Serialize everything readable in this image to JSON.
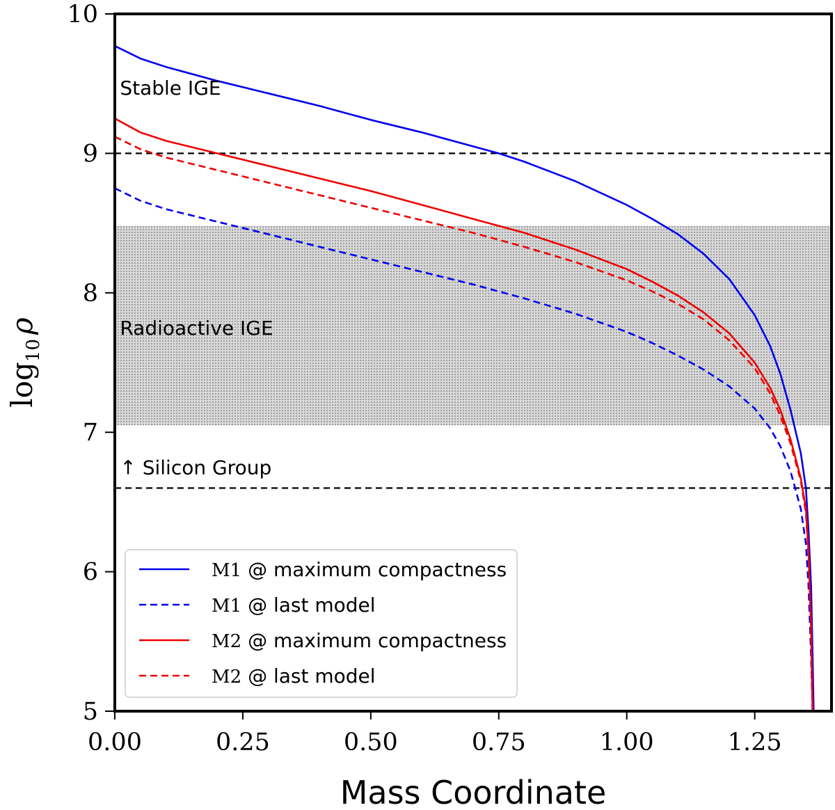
{
  "chart_data": {
    "type": "line",
    "title": "",
    "xlabel": "Mass Coordinate",
    "ylabel": "log10 ρ",
    "ylabel_parts": {
      "base": "log",
      "sub": "10",
      "symbol": "ρ"
    },
    "xlim": [
      0.0,
      1.4
    ],
    "ylim": [
      5,
      10
    ],
    "xticks": [
      0.0,
      0.25,
      0.5,
      0.75,
      1.0,
      1.25
    ],
    "xtick_labels": [
      "0.00",
      "0.25",
      "0.50",
      "0.75",
      "1.00",
      "1.25"
    ],
    "yticks": [
      5,
      6,
      7,
      8,
      9,
      10
    ],
    "ytick_labels": [
      "5",
      "6",
      "7",
      "8",
      "9",
      "10"
    ],
    "grid": false,
    "legend_position": "lower-left",
    "shaded_band": {
      "y_range": [
        7.05,
        8.48
      ],
      "color": "#b5b5b5",
      "pattern": "dots"
    },
    "reference_lines": [
      {
        "y": 9.0,
        "style": "dashed",
        "color": "#000000"
      },
      {
        "y": 6.6,
        "style": "dashed",
        "color": "#000000"
      }
    ],
    "annotations": [
      {
        "text": "Stable IGE",
        "x": 0.01,
        "y": 9.42
      },
      {
        "text": "Radioactive IGE",
        "x": 0.01,
        "y": 7.7
      },
      {
        "text": "↑ Silicon Group",
        "x": 0.01,
        "y": 6.7
      }
    ],
    "series": [
      {
        "name": "M1 @ maximum compactness",
        "model": "M1",
        "suffix": "@ maximum compactness",
        "color": "#0000ee",
        "style": "solid",
        "x": [
          0.0,
          0.05,
          0.1,
          0.2,
          0.3,
          0.4,
          0.5,
          0.6,
          0.7,
          0.75,
          0.8,
          0.9,
          1.0,
          1.05,
          1.1,
          1.15,
          1.2,
          1.25,
          1.28,
          1.3,
          1.32,
          1.34,
          1.35,
          1.355,
          1.36,
          1.363,
          1.365
        ],
        "y": [
          9.77,
          9.68,
          9.62,
          9.52,
          9.43,
          9.34,
          9.24,
          9.15,
          9.05,
          9.0,
          8.94,
          8.8,
          8.63,
          8.53,
          8.42,
          8.28,
          8.1,
          7.84,
          7.62,
          7.42,
          7.16,
          6.85,
          6.6,
          6.3,
          5.9,
          5.4,
          5.0
        ]
      },
      {
        "name": "M1 @ last model",
        "model": "M1",
        "suffix": "@ last model",
        "color": "#0000ee",
        "style": "dashed",
        "x": [
          0.0,
          0.05,
          0.1,
          0.2,
          0.3,
          0.4,
          0.5,
          0.6,
          0.7,
          0.8,
          0.9,
          1.0,
          1.05,
          1.1,
          1.15,
          1.2,
          1.25,
          1.28,
          1.3,
          1.32,
          1.34,
          1.35,
          1.355,
          1.36,
          1.363
        ],
        "y": [
          8.75,
          8.66,
          8.6,
          8.51,
          8.42,
          8.33,
          8.24,
          8.15,
          8.06,
          7.96,
          7.85,
          7.72,
          7.64,
          7.55,
          7.45,
          7.33,
          7.17,
          7.03,
          6.9,
          6.72,
          6.45,
          6.2,
          5.9,
          5.4,
          5.0
        ]
      },
      {
        "name": "M2 @ maximum compactness",
        "model": "M2",
        "suffix": "@ maximum compactness",
        "color": "#ee0000",
        "style": "solid",
        "x": [
          0.0,
          0.05,
          0.1,
          0.2,
          0.3,
          0.4,
          0.5,
          0.6,
          0.7,
          0.8,
          0.9,
          1.0,
          1.05,
          1.1,
          1.15,
          1.2,
          1.25,
          1.28,
          1.3,
          1.32,
          1.34,
          1.35,
          1.355,
          1.36,
          1.363
        ],
        "y": [
          9.25,
          9.15,
          9.09,
          9.0,
          8.91,
          8.82,
          8.73,
          8.63,
          8.53,
          8.43,
          8.31,
          8.17,
          8.08,
          7.98,
          7.86,
          7.71,
          7.5,
          7.32,
          7.16,
          6.95,
          6.67,
          6.45,
          6.15,
          5.6,
          5.0
        ]
      },
      {
        "name": "M2 @ last model",
        "model": "M2",
        "suffix": "@ last model",
        "color": "#ee0000",
        "style": "dashed",
        "x": [
          0.0,
          0.05,
          0.1,
          0.2,
          0.3,
          0.4,
          0.5,
          0.6,
          0.7,
          0.8,
          0.9,
          1.0,
          1.05,
          1.1,
          1.15,
          1.2,
          1.25,
          1.28,
          1.3,
          1.32,
          1.34,
          1.35,
          1.355,
          1.36,
          1.363
        ],
        "y": [
          9.12,
          9.03,
          8.97,
          8.88,
          8.79,
          8.7,
          8.61,
          8.52,
          8.43,
          8.33,
          8.22,
          8.09,
          8.01,
          7.92,
          7.81,
          7.66,
          7.46,
          7.28,
          7.12,
          6.92,
          6.65,
          6.42,
          6.12,
          5.6,
          5.0
        ]
      }
    ]
  }
}
